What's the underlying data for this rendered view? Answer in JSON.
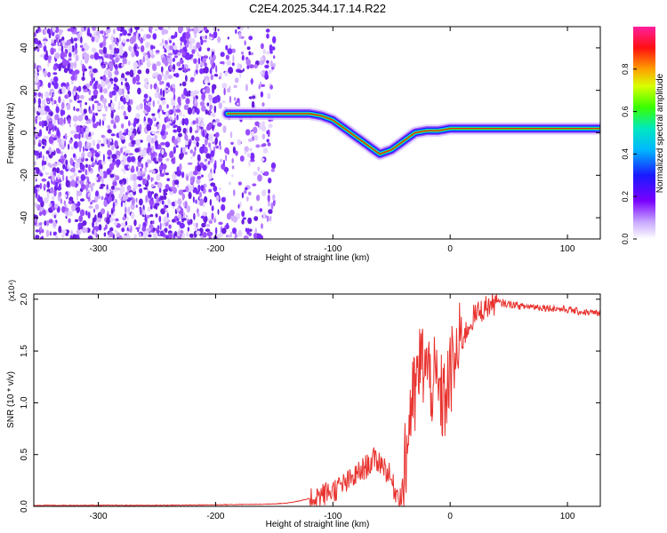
{
  "title": "C2E4.2025.344.17.14.R22",
  "chart_data": [
    {
      "type": "heatmap",
      "panel": "spectrogram",
      "xlabel": "Height of straight line (km)",
      "ylabel": "Frequency (Hz)",
      "xlim": [
        -355,
        128
      ],
      "ylim": [
        -50,
        50
      ],
      "xticks": [
        -300,
        -200,
        -100,
        0,
        100
      ],
      "yticks": [
        -40,
        -20,
        0,
        20,
        40
      ],
      "ridge": {
        "x": [
          -190,
          -160,
          -140,
          -120,
          -110,
          -100,
          -90,
          -80,
          -70,
          -60,
          -50,
          -40,
          -30,
          -20,
          -10,
          0,
          20,
          40,
          60,
          80,
          100,
          128
        ],
        "y": [
          9,
          9,
          9,
          9,
          8,
          6,
          2,
          -2,
          -6,
          -10,
          -8,
          -4,
          0,
          1,
          1,
          2,
          2,
          2,
          2,
          2,
          2,
          2
        ]
      },
      "colorbar": {
        "label": "Normalized spectral amplitude",
        "range": [
          0,
          1
        ],
        "ticks": [
          "0.0",
          "0.2",
          "0.4",
          "0.6",
          "0.8"
        ],
        "tick_values": [
          0,
          0.2,
          0.4,
          0.6,
          0.8
        ]
      }
    },
    {
      "type": "line",
      "panel": "snr",
      "xlabel": "Height of straight line (km)",
      "ylabel": "SNR (10 * v/v)",
      "yscale_label": "(x10⁴)",
      "xlim": [
        -355,
        128
      ],
      "ylim": [
        0,
        2.05
      ],
      "xticks": [
        -300,
        -200,
        -100,
        0,
        100
      ],
      "yticks": [
        0.0,
        0.5,
        1.0,
        1.5,
        2.0
      ],
      "ytick_labels": [
        "0.0",
        "0.5",
        "1.0",
        "1.5",
        "2.0"
      ],
      "color": "#e8312d",
      "series": [
        {
          "name": "SNR",
          "x": [
            -355,
            -300,
            -250,
            -200,
            -160,
            -140,
            -125,
            -115,
            -105,
            -95,
            -85,
            -75,
            -65,
            -58,
            -52,
            -47,
            -42,
            -38,
            -34,
            -30,
            -26,
            -22,
            -18,
            -14,
            -10,
            -6,
            -2,
            2,
            6,
            10,
            15,
            20,
            25,
            30,
            35,
            40,
            45,
            50,
            55,
            60,
            70,
            80,
            90,
            100,
            110,
            120,
            128
          ],
          "y": [
            0.01,
            0.01,
            0.01,
            0.015,
            0.02,
            0.03,
            0.06,
            0.09,
            0.13,
            0.18,
            0.25,
            0.35,
            0.45,
            0.42,
            0.3,
            0.15,
            0.1,
            0.4,
            0.95,
            1.05,
            1.35,
            1.4,
            1.25,
            1.2,
            1.1,
            1.0,
            1.15,
            1.35,
            1.45,
            1.6,
            1.72,
            1.83,
            1.88,
            1.92,
            1.95,
            1.97,
            1.96,
            1.95,
            1.95,
            1.93,
            1.93,
            1.92,
            1.91,
            1.9,
            1.88,
            1.87,
            1.86
          ]
        }
      ]
    }
  ]
}
